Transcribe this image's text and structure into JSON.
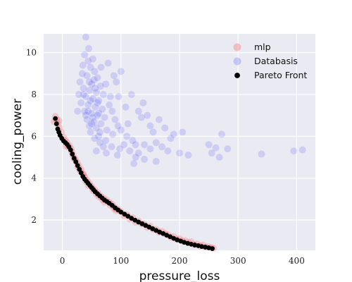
{
  "chart_data": {
    "type": "scatter",
    "xlabel": "pressure_loss",
    "ylabel": "cooling_power",
    "xlim": [
      -32,
      432
    ],
    "ylim": [
      0.55,
      10.9
    ],
    "x_ticks": [
      0,
      100,
      200,
      300,
      400
    ],
    "y_ticks": [
      2,
      4,
      6,
      8,
      10
    ],
    "grid": true,
    "legend_position": "top-right",
    "series": [
      {
        "name": "mlp",
        "color": "#ff0000",
        "alpha": 0.15,
        "points": [
          [
            -12,
            6.95
          ],
          [
            -10,
            6.8
          ],
          [
            -8,
            6.6
          ],
          [
            -5,
            6.4
          ],
          [
            -2,
            6.2
          ],
          [
            2,
            5.95
          ],
          [
            5,
            5.8
          ],
          [
            8,
            5.7
          ],
          [
            12,
            5.55
          ],
          [
            15,
            5.4
          ],
          [
            18,
            5.1
          ],
          [
            22,
            4.9
          ],
          [
            25,
            4.75
          ],
          [
            28,
            4.6
          ],
          [
            32,
            4.4
          ],
          [
            35,
            4.2
          ],
          [
            38,
            4.05
          ],
          [
            42,
            3.9
          ],
          [
            46,
            3.75
          ],
          [
            50,
            3.6
          ],
          [
            55,
            3.45
          ],
          [
            60,
            3.3
          ],
          [
            65,
            3.15
          ],
          [
            70,
            3.05
          ],
          [
            75,
            2.95
          ],
          [
            80,
            2.85
          ],
          [
            85,
            2.75
          ],
          [
            90,
            2.6
          ],
          [
            95,
            2.5
          ],
          [
            100,
            2.4
          ],
          [
            110,
            2.25
          ],
          [
            120,
            2.1
          ],
          [
            130,
            1.95
          ],
          [
            140,
            1.8
          ],
          [
            150,
            1.7
          ],
          [
            160,
            1.55
          ],
          [
            170,
            1.45
          ],
          [
            180,
            1.3
          ],
          [
            190,
            1.2
          ],
          [
            200,
            1.1
          ],
          [
            210,
            1.0
          ],
          [
            220,
            0.95
          ],
          [
            230,
            0.85
          ],
          [
            240,
            0.8
          ],
          [
            250,
            0.72
          ],
          [
            258,
            0.65
          ],
          [
            -14,
            6.7
          ],
          [
            6,
            5.55
          ],
          [
            20,
            4.95
          ],
          [
            30,
            4.35
          ],
          [
            44,
            3.65
          ],
          [
            58,
            3.25
          ],
          [
            72,
            2.85
          ],
          [
            88,
            2.55
          ],
          [
            105,
            2.2
          ],
          [
            125,
            1.9
          ],
          [
            145,
            1.65
          ],
          [
            165,
            1.42
          ],
          [
            185,
            1.18
          ],
          [
            205,
            1.0
          ],
          [
            225,
            0.82
          ],
          [
            245,
            0.7
          ],
          [
            -6,
            6.75
          ],
          [
            16,
            5.25
          ],
          [
            36,
            4.15
          ],
          [
            52,
            3.42
          ],
          [
            68,
            2.98
          ],
          [
            92,
            2.45
          ],
          [
            115,
            2.05
          ],
          [
            155,
            1.55
          ],
          [
            195,
            1.08
          ],
          [
            235,
            0.76
          ],
          [
            10,
            5.5
          ],
          [
            26,
            4.55
          ],
          [
            40,
            3.85
          ],
          [
            62,
            3.12
          ],
          [
            82,
            2.7
          ],
          [
            135,
            1.82
          ],
          [
            175,
            1.35
          ],
          [
            215,
            0.92
          ],
          [
            255,
            0.66
          ]
        ]
      },
      {
        "name": "Databasis",
        "color": "#0000ff",
        "alpha": 0.12,
        "points": [
          [
            40,
            10.75
          ],
          [
            45,
            10.2
          ],
          [
            38,
            9.9
          ],
          [
            52,
            9.7
          ],
          [
            35,
            9.4
          ],
          [
            48,
            9.3
          ],
          [
            55,
            9.1
          ],
          [
            42,
            8.9
          ],
          [
            60,
            8.8
          ],
          [
            30,
            8.6
          ],
          [
            50,
            8.5
          ],
          [
            65,
            8.4
          ],
          [
            36,
            8.3
          ],
          [
            46,
            8.2
          ],
          [
            58,
            8.1
          ],
          [
            70,
            8.0
          ],
          [
            40,
            7.9
          ],
          [
            52,
            7.8
          ],
          [
            62,
            7.7
          ],
          [
            32,
            7.6
          ],
          [
            44,
            7.5
          ],
          [
            56,
            7.4
          ],
          [
            68,
            7.3
          ],
          [
            38,
            7.2
          ],
          [
            50,
            7.1
          ],
          [
            60,
            7.0
          ],
          [
            72,
            6.9
          ],
          [
            42,
            6.8
          ],
          [
            54,
            6.7
          ],
          [
            66,
            6.6
          ],
          [
            46,
            6.5
          ],
          [
            58,
            6.4
          ],
          [
            76,
            6.3
          ],
          [
            48,
            6.2
          ],
          [
            62,
            6.0
          ],
          [
            55,
            5.9
          ],
          [
            64,
            5.7
          ],
          [
            70,
            5.5
          ],
          [
            58,
            5.3
          ],
          [
            75,
            5.2
          ],
          [
            80,
            7.5
          ],
          [
            85,
            7.2
          ],
          [
            90,
            6.8
          ],
          [
            95,
            6.5
          ],
          [
            100,
            6.3
          ],
          [
            110,
            6.0
          ],
          [
            105,
            5.6
          ],
          [
            120,
            5.8
          ],
          [
            115,
            5.3
          ],
          [
            125,
            5.0
          ],
          [
            130,
            5.2
          ],
          [
            140,
            5.6
          ],
          [
            150,
            5.4
          ],
          [
            160,
            5.7
          ],
          [
            170,
            5.5
          ],
          [
            180,
            5.3
          ],
          [
            190,
            6.1
          ],
          [
            200,
            5.2
          ],
          [
            205,
            6.2
          ],
          [
            215,
            5.1
          ],
          [
            250,
            5.6
          ],
          [
            255,
            5.2
          ],
          [
            262,
            5.45
          ],
          [
            268,
            5.0
          ],
          [
            272,
            6.1
          ],
          [
            282,
            5.4
          ],
          [
            340,
            5.15
          ],
          [
            395,
            5.3
          ],
          [
            410,
            5.35
          ],
          [
            100,
            9.1
          ],
          [
            78,
            9.5
          ],
          [
            88,
            8.9
          ],
          [
            92,
            8.6
          ],
          [
            118,
            8.0
          ],
          [
            130,
            7.2
          ],
          [
            138,
            7.6
          ],
          [
            145,
            7.0
          ],
          [
            150,
            6.5
          ],
          [
            155,
            6.2
          ],
          [
            165,
            6.8
          ],
          [
            175,
            6.4
          ],
          [
            185,
            5.9
          ],
          [
            96,
            7.9
          ],
          [
            108,
            7.4
          ],
          [
            86,
            6.1
          ],
          [
            112,
            6.6
          ],
          [
            135,
            6.9
          ],
          [
            125,
            5.6
          ],
          [
            98,
            5.4
          ],
          [
            122,
            4.7
          ],
          [
            26,
            7.2
          ],
          [
            28,
            8.0
          ],
          [
            34,
            9.0
          ],
          [
            44,
            9.6
          ],
          [
            54,
            8.7
          ],
          [
            66,
            9.3
          ],
          [
            74,
            8.5
          ],
          [
            82,
            7.9
          ],
          [
            64,
            6.2
          ],
          [
            74,
            5.8
          ],
          [
            84,
            5.5
          ],
          [
            94,
            5.1
          ],
          [
            140,
            4.9
          ],
          [
            160,
            4.8
          ],
          [
            52,
            6.9
          ],
          [
            44,
            7.2
          ],
          [
            60,
            7.6
          ],
          [
            36,
            8.0
          ],
          [
            48,
            7.7
          ],
          [
            56,
            8.3
          ],
          [
            40,
            7.0
          ],
          [
            50,
            6.6
          ],
          [
            46,
            8.6
          ],
          [
            62,
            7.1
          ]
        ]
      },
      {
        "name": "Pareto Front",
        "color": "#000000",
        "alpha": 1,
        "points": [
          [
            -12,
            6.85
          ],
          [
            -10,
            6.6
          ],
          [
            -8,
            6.35
          ],
          [
            -6,
            6.2
          ],
          [
            -4,
            6.05
          ],
          [
            -1,
            5.9
          ],
          [
            2,
            5.78
          ],
          [
            5,
            5.7
          ],
          [
            8,
            5.62
          ],
          [
            11,
            5.5
          ],
          [
            14,
            5.35
          ],
          [
            17,
            5.15
          ],
          [
            20,
            4.95
          ],
          [
            23,
            4.78
          ],
          [
            26,
            4.6
          ],
          [
            29,
            4.42
          ],
          [
            32,
            4.25
          ],
          [
            35,
            4.08
          ],
          [
            38,
            3.95
          ],
          [
            41,
            3.85
          ],
          [
            44,
            3.75
          ],
          [
            47,
            3.65
          ],
          [
            50,
            3.55
          ],
          [
            53,
            3.45
          ],
          [
            56,
            3.35
          ],
          [
            60,
            3.25
          ],
          [
            64,
            3.15
          ],
          [
            68,
            3.05
          ],
          [
            72,
            2.95
          ],
          [
            76,
            2.88
          ],
          [
            80,
            2.8
          ],
          [
            85,
            2.7
          ],
          [
            90,
            2.58
          ],
          [
            95,
            2.48
          ],
          [
            100,
            2.38
          ],
          [
            106,
            2.28
          ],
          [
            112,
            2.18
          ],
          [
            118,
            2.08
          ],
          [
            124,
            1.99
          ],
          [
            130,
            1.9
          ],
          [
            136,
            1.82
          ],
          [
            142,
            1.74
          ],
          [
            148,
            1.66
          ],
          [
            154,
            1.58
          ],
          [
            160,
            1.5
          ],
          [
            166,
            1.42
          ],
          [
            172,
            1.35
          ],
          [
            178,
            1.27
          ],
          [
            184,
            1.2
          ],
          [
            190,
            1.12
          ],
          [
            196,
            1.05
          ],
          [
            202,
            0.99
          ],
          [
            208,
            0.93
          ],
          [
            214,
            0.88
          ],
          [
            220,
            0.84
          ],
          [
            226,
            0.8
          ],
          [
            232,
            0.77
          ],
          [
            238,
            0.73
          ],
          [
            244,
            0.7
          ],
          [
            250,
            0.67
          ],
          [
            256,
            0.63
          ]
        ]
      }
    ]
  }
}
